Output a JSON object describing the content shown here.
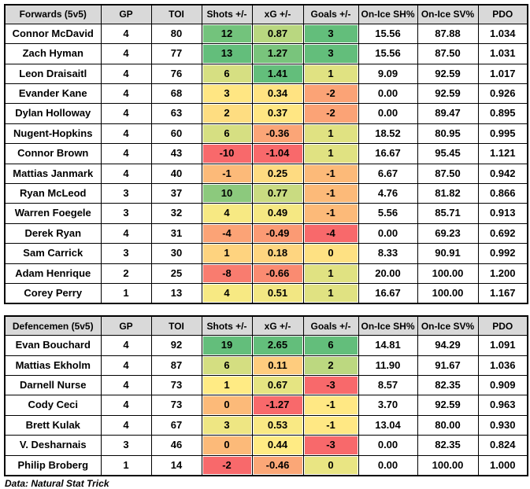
{
  "caption": "Data: Natural Stat Trick",
  "colors": {
    "header_bg": "#D9D9D9",
    "border": "#000000",
    "scale_min_red": "#F8696B",
    "scale_mid_yellow": "#FFEB84",
    "scale_max_green": "#63BE7B"
  },
  "chart_data": [
    {
      "type": "table",
      "title": "Forwards (5v5)",
      "columns": [
        "Forwards (5v5)",
        "GP",
        "TOI",
        "Shots +/-",
        "xG +/-",
        "Goals +/-",
        "On-Ice SH%",
        "On-Ice SV%",
        "PDO"
      ],
      "rows": [
        {
          "name": "Connor McDavid",
          "gp": "4",
          "toi": "80",
          "shots": "12",
          "shots_color": "#73C37C",
          "xg": "0.87",
          "xg_color": "#B9D780",
          "goals": "3",
          "goals_color": "#63BE7B",
          "on_ice_sh_pct": "15.56",
          "on_ice_sv_pct": "87.88",
          "pdo": "1.034"
        },
        {
          "name": "Zach Hyman",
          "gp": "4",
          "toi": "77",
          "shots": "13",
          "shots_color": "#63BE7B",
          "xg": "1.27",
          "xg_color": "#79C47C",
          "goals": "3",
          "goals_color": "#63BE7B",
          "on_ice_sh_pct": "15.56",
          "on_ice_sv_pct": "87.50",
          "pdo": "1.031"
        },
        {
          "name": "Leon Draisaitl",
          "gp": "4",
          "toi": "76",
          "shots": "6",
          "shots_color": "#D6DF82",
          "xg": "1.41",
          "xg_color": "#63BE7B",
          "goals": "1",
          "goals_color": "#E0E282",
          "on_ice_sh_pct": "9.09",
          "on_ice_sv_pct": "92.59",
          "pdo": "1.017"
        },
        {
          "name": "Evander Kane",
          "gp": "4",
          "toi": "68",
          "shots": "3",
          "shots_color": "#FFE683",
          "xg": "0.34",
          "xg_color": "#FFE382",
          "goals": "-2",
          "goals_color": "#FBA376",
          "on_ice_sh_pct": "0.00",
          "on_ice_sv_pct": "92.59",
          "pdo": "0.926"
        },
        {
          "name": "Dylan Holloway",
          "gp": "4",
          "toi": "63",
          "shots": "2",
          "shots_color": "#FEDD81",
          "xg": "0.37",
          "xg_color": "#FFE683",
          "goals": "-2",
          "goals_color": "#FBA376",
          "on_ice_sh_pct": "0.00",
          "on_ice_sv_pct": "89.47",
          "pdo": "0.895"
        },
        {
          "name": "Nugent-Hopkins",
          "gp": "4",
          "toi": "60",
          "shots": "6",
          "shots_color": "#D6DF82",
          "xg": "-0.36",
          "xg_color": "#FBA577",
          "goals": "1",
          "goals_color": "#E0E282",
          "on_ice_sh_pct": "18.52",
          "on_ice_sv_pct": "80.95",
          "pdo": "0.995"
        },
        {
          "name": "Connor Brown",
          "gp": "4",
          "toi": "43",
          "shots": "-10",
          "shots_color": "#F8696B",
          "xg": "-1.04",
          "xg_color": "#F8696B",
          "goals": "1",
          "goals_color": "#E0E282",
          "on_ice_sh_pct": "16.67",
          "on_ice_sv_pct": "95.45",
          "pdo": "1.121"
        },
        {
          "name": "Mattias Janmark",
          "gp": "4",
          "toi": "40",
          "shots": "-1",
          "shots_color": "#FCBA79",
          "xg": "0.25",
          "xg_color": "#FEDB81",
          "goals": "-1",
          "goals_color": "#FCBA79",
          "on_ice_sh_pct": "6.67",
          "on_ice_sv_pct": "87.50",
          "pdo": "0.942"
        },
        {
          "name": "Ryan McLeod",
          "gp": "3",
          "toi": "37",
          "shots": "10",
          "shots_color": "#8CC97D",
          "xg": "0.77",
          "xg_color": "#C9DB81",
          "goals": "-1",
          "goals_color": "#FCBA79",
          "on_ice_sh_pct": "4.76",
          "on_ice_sv_pct": "81.82",
          "pdo": "0.866"
        },
        {
          "name": "Warren Foegele",
          "gp": "3",
          "toi": "32",
          "shots": "4",
          "shots_color": "#F7E983",
          "xg": "0.49",
          "xg_color": "#F5E883",
          "goals": "-1",
          "goals_color": "#FCBA79",
          "on_ice_sh_pct": "5.56",
          "on_ice_sv_pct": "85.71",
          "pdo": "0.913"
        },
        {
          "name": "Derek Ryan",
          "gp": "4",
          "toi": "31",
          "shots": "-4",
          "shots_color": "#FBA376",
          "xg": "-0.49",
          "xg_color": "#FB9A74",
          "goals": "-4",
          "goals_color": "#F8696B",
          "on_ice_sh_pct": "0.00",
          "on_ice_sv_pct": "69.23",
          "pdo": "0.692"
        },
        {
          "name": "Sam Carrick",
          "gp": "3",
          "toi": "30",
          "shots": "1",
          "shots_color": "#FED37F",
          "xg": "0.18",
          "xg_color": "#FED580",
          "goals": "0",
          "goals_color": "#FEE183",
          "on_ice_sh_pct": "8.33",
          "on_ice_sv_pct": "90.91",
          "pdo": "0.992"
        },
        {
          "name": "Adam Henrique",
          "gp": "2",
          "toi": "25",
          "shots": "-8",
          "shots_color": "#F97C6F",
          "xg": "-0.66",
          "xg_color": "#FA8B71",
          "goals": "1",
          "goals_color": "#E0E282",
          "on_ice_sh_pct": "20.00",
          "on_ice_sv_pct": "100.00",
          "pdo": "1.200"
        },
        {
          "name": "Corey Perry",
          "gp": "1",
          "toi": "13",
          "shots": "4",
          "shots_color": "#F7E983",
          "xg": "0.51",
          "xg_color": "#F2E783",
          "goals": "1",
          "goals_color": "#E0E282",
          "on_ice_sh_pct": "16.67",
          "on_ice_sv_pct": "100.00",
          "pdo": "1.167"
        }
      ]
    },
    {
      "type": "table",
      "title": "Defencemen (5v5)",
      "columns": [
        "Defencemen (5v5)",
        "GP",
        "TOI",
        "Shots +/-",
        "xG +/-",
        "Goals +/-",
        "On-Ice SH%",
        "On-Ice SV%",
        "PDO"
      ],
      "rows": [
        {
          "name": "Evan Bouchard",
          "gp": "4",
          "toi": "92",
          "shots": "19",
          "shots_color": "#63BE7B",
          "xg": "2.65",
          "xg_color": "#63BE7B",
          "goals": "6",
          "goals_color": "#63BE7B",
          "on_ice_sh_pct": "14.81",
          "on_ice_sv_pct": "94.29",
          "pdo": "1.091"
        },
        {
          "name": "Mattias Ekholm",
          "gp": "4",
          "toi": "87",
          "shots": "6",
          "shots_color": "#D4DE81",
          "xg": "0.11",
          "xg_color": "#FECC7E",
          "goals": "2",
          "goals_color": "#BCD880",
          "on_ice_sh_pct": "11.90",
          "on_ice_sv_pct": "91.67",
          "pdo": "1.036"
        },
        {
          "name": "Darnell Nurse",
          "gp": "4",
          "toi": "73",
          "shots": "1",
          "shots_color": "#FFEB84",
          "xg": "0.67",
          "xg_color": "#E5E482",
          "goals": "-3",
          "goals_color": "#F8696B",
          "on_ice_sh_pct": "8.57",
          "on_ice_sv_pct": "82.35",
          "pdo": "0.909"
        },
        {
          "name": "Cody Ceci",
          "gp": "4",
          "toi": "73",
          "shots": "0",
          "shots_color": "#FCBA79",
          "xg": "-1.27",
          "xg_color": "#F8696B",
          "goals": "-1",
          "goals_color": "#FFE884",
          "on_ice_sh_pct": "3.70",
          "on_ice_sv_pct": "92.59",
          "pdo": "0.963"
        },
        {
          "name": "Brett Kulak",
          "gp": "4",
          "toi": "67",
          "shots": "3",
          "shots_color": "#EEE683",
          "xg": "0.53",
          "xg_color": "#F9E984",
          "goals": "-1",
          "goals_color": "#FFE884",
          "on_ice_sh_pct": "13.04",
          "on_ice_sv_pct": "80.00",
          "pdo": "0.930"
        },
        {
          "name": "V. Desharnais",
          "gp": "3",
          "toi": "46",
          "shots": "0",
          "shots_color": "#FCBA79",
          "xg": "0.44",
          "xg_color": "#FFEB84",
          "goals": "-3",
          "goals_color": "#F8696B",
          "on_ice_sh_pct": "0.00",
          "on_ice_sv_pct": "82.35",
          "pdo": "0.824"
        },
        {
          "name": "Philip Broberg",
          "gp": "1",
          "toi": "14",
          "shots": "-2",
          "shots_color": "#F8696B",
          "xg": "-0.46",
          "xg_color": "#FBA777",
          "goals": "0",
          "goals_color": "#E9E583",
          "on_ice_sh_pct": "0.00",
          "on_ice_sv_pct": "100.00",
          "pdo": "1.000"
        }
      ]
    }
  ]
}
